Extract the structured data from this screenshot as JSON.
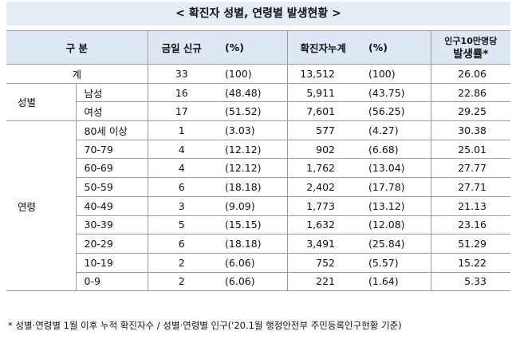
{
  "title": "< 확진자 성별, 연령별 발생현황 >",
  "header": {
    "group": "구 분",
    "new": "금일 신규",
    "new_pct": "(%)",
    "total": "확진자누계",
    "total_pct": "(%)",
    "rate_top": "인구10만명당",
    "rate_bottom": "발생률*"
  },
  "total_row": {
    "label": "계",
    "new": "33",
    "new_pct": "(100)",
    "total": "13,512",
    "total_pct": "(100)",
    "rate": "26.06"
  },
  "groups": [
    {
      "name": "성별",
      "rows": [
        {
          "label": "남성",
          "new": "16",
          "new_pct": "(48.48)",
          "total": "5,911",
          "total_pct": "(43.75)",
          "rate": "22.86"
        },
        {
          "label": "여성",
          "new": "17",
          "new_pct": "(51.52)",
          "total": "7,601",
          "total_pct": "(56.25)",
          "rate": "29.25"
        }
      ]
    },
    {
      "name": "연령",
      "rows": [
        {
          "label": "80세 이상",
          "new": "1",
          "new_pct": "(3.03)",
          "total": "577",
          "total_pct": "(4.27)",
          "rate": "30.38"
        },
        {
          "label": "70-79",
          "new": "4",
          "new_pct": "(12.12)",
          "total": "902",
          "total_pct": "(6.68)",
          "rate": "25.01"
        },
        {
          "label": "60-69",
          "new": "4",
          "new_pct": "(12.12)",
          "total": "1,762",
          "total_pct": "(13.04)",
          "rate": "27.77"
        },
        {
          "label": "50-59",
          "new": "6",
          "new_pct": "(18.18)",
          "total": "2,402",
          "total_pct": "(17.78)",
          "rate": "27.71"
        },
        {
          "label": "40-49",
          "new": "3",
          "new_pct": "(9.09)",
          "total": "1,773",
          "total_pct": "(13.12)",
          "rate": "21.13"
        },
        {
          "label": "30-39",
          "new": "5",
          "new_pct": "(15.15)",
          "total": "1,632",
          "total_pct": "(12.08)",
          "rate": "23.16"
        },
        {
          "label": "20-29",
          "new": "6",
          "new_pct": "(18.18)",
          "total": "3,491",
          "total_pct": "(25.84)",
          "rate": "51.29"
        },
        {
          "label": "10-19",
          "new": "2",
          "new_pct": "(6.06)",
          "total": "752",
          "total_pct": "(5.57)",
          "rate": "15.22"
        },
        {
          "label": "0-9",
          "new": "2",
          "new_pct": "(6.06)",
          "total": "221",
          "total_pct": "(1.64)",
          "rate": "5.33"
        }
      ]
    }
  ],
  "footnote": "* 성별·연령별 1월 이후 누적 확진자수 / 성별·연령별 인구('20.1월 행정안전부 주민등록인구현황 기준)"
}
